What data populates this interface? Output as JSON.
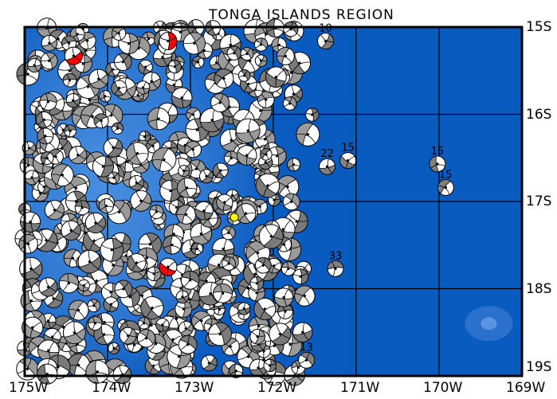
{
  "map": {
    "title": "TONGA ISLANDS REGION",
    "lon_range": [
      -175,
      -169
    ],
    "lat_range": [
      -19,
      -15
    ],
    "x_ticks": [
      "175W",
      "174W",
      "173W",
      "172W",
      "171W",
      "170W",
      "169W"
    ],
    "y_ticks": [
      "15S",
      "16S",
      "17S",
      "18S",
      "19S"
    ],
    "grid": true,
    "colors": {
      "ocean_deep": "#0a5bbf",
      "ocean_shallow": "#3f86db",
      "frame": "#000000",
      "mechanism_fill": "#808080",
      "highlight": "#ff0000",
      "marker": "#ffff00"
    },
    "labeled_events": [
      {
        "lon": -171.37,
        "lat": -15.16,
        "depth": "10"
      },
      {
        "lon": -171.35,
        "lat": -16.6,
        "depth": "22"
      },
      {
        "lon": -171.1,
        "lat": -16.53,
        "depth": "15"
      },
      {
        "lon": -170.02,
        "lat": -16.57,
        "depth": "15"
      },
      {
        "lon": -169.92,
        "lat": -16.84,
        "depth": "15"
      },
      {
        "lon": -171.25,
        "lat": -17.77,
        "depth": "33"
      },
      {
        "lon": -171.6,
        "lat": -18.82,
        "depth": "13"
      }
    ],
    "highlighted_events": [
      {
        "lon": -173.27,
        "lat": -15.16
      },
      {
        "lon": -174.41,
        "lat": -15.33
      },
      {
        "lon": -173.27,
        "lat": -17.75
      }
    ],
    "marker": {
      "lon": -172.47,
      "lat": -17.18
    }
  }
}
